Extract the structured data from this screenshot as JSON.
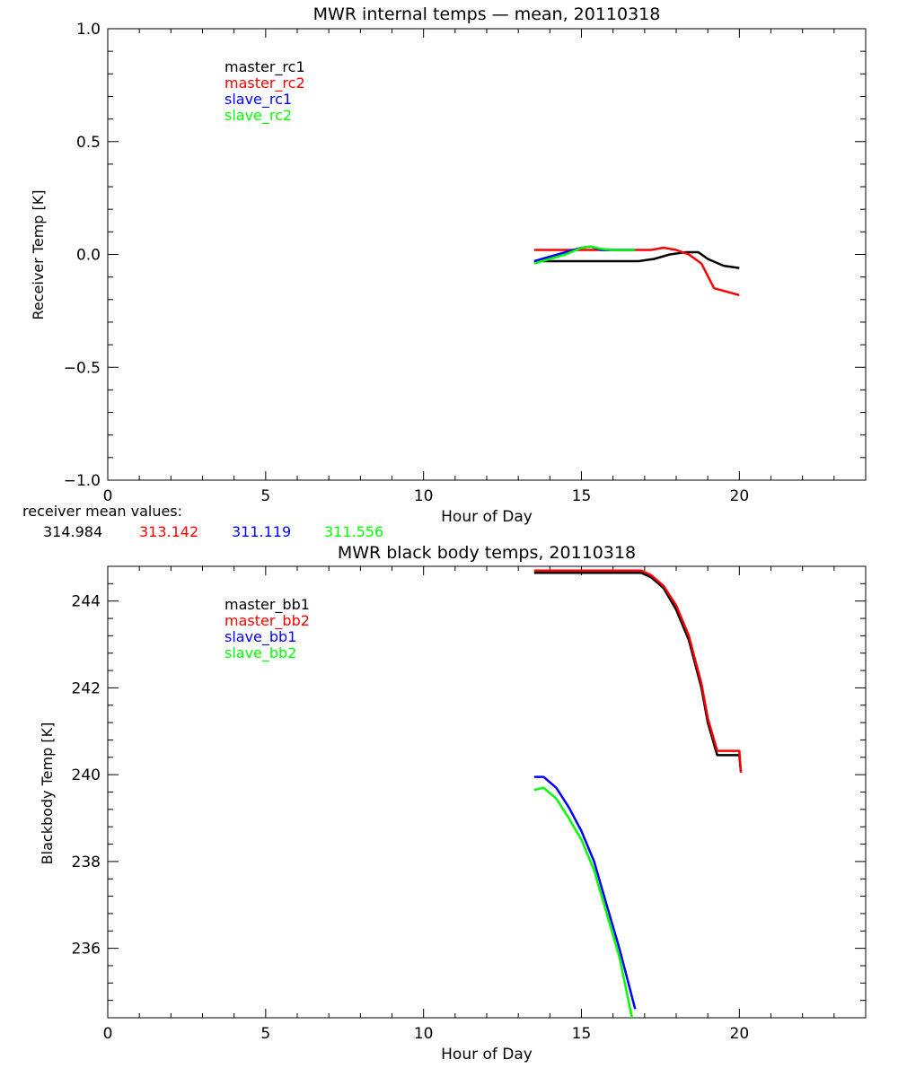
{
  "chart_data": [
    {
      "type": "line",
      "title": "MWR internal temps — mean, 20110318",
      "xlabel": "Hour of Day",
      "ylabel": "Receiver Temp [K]",
      "xlim": [
        0,
        24
      ],
      "ylim": [
        -1.0,
        1.0
      ],
      "x_ticks": [
        0,
        5,
        10,
        15,
        20
      ],
      "x_tick_labels": [
        "0",
        "5",
        "10",
        "15",
        "20"
      ],
      "y_ticks": [
        -1.0,
        -0.5,
        0.0,
        0.5,
        1.0
      ],
      "y_tick_labels": [
        "−1.0",
        "−0.5",
        "0.0",
        "0.5",
        "1.0"
      ],
      "legend_position": "top-left",
      "series": [
        {
          "name": "master_rc1",
          "color": "#000000",
          "x": [
            13.5,
            16.8,
            17.3,
            17.8,
            18.3,
            18.7,
            19.0,
            19.5,
            20.0
          ],
          "y": [
            -0.03,
            -0.03,
            -0.02,
            0.0,
            0.01,
            0.01,
            -0.02,
            -0.05,
            -0.06
          ]
        },
        {
          "name": "master_rc2",
          "color": "#ff0000",
          "x": [
            13.5,
            16.8,
            17.2,
            17.6,
            18.0,
            18.4,
            18.8,
            19.2,
            20.0
          ],
          "y": [
            0.02,
            0.02,
            0.02,
            0.03,
            0.02,
            0.0,
            -0.04,
            -0.15,
            -0.18
          ]
        },
        {
          "name": "slave_rc1",
          "color": "#0000ff",
          "x": [
            13.5,
            14.0,
            14.5,
            15.0,
            15.3,
            15.6,
            16.7
          ],
          "y": [
            -0.03,
            -0.01,
            0.01,
            0.03,
            0.035,
            0.02,
            0.02
          ]
        },
        {
          "name": "slave_rc2",
          "color": "#00ff00",
          "x": [
            13.5,
            14.0,
            14.5,
            15.0,
            15.3,
            15.6,
            16.0,
            16.7
          ],
          "y": [
            -0.04,
            -0.02,
            0.0,
            0.03,
            0.035,
            0.025,
            0.02,
            0.02
          ]
        }
      ],
      "annotation": {
        "label": "receiver mean values:",
        "values": [
          {
            "text": "314.984",
            "color": "#000000"
          },
          {
            "text": "313.142",
            "color": "#ff0000"
          },
          {
            "text": "311.119",
            "color": "#0000ff"
          },
          {
            "text": "311.556",
            "color": "#00ff00"
          }
        ]
      }
    },
    {
      "type": "line",
      "title": "MWR black body temps, 20110318",
      "xlabel": "Hour of Day",
      "ylabel": "Blackbody Temp [K]",
      "xlim": [
        0,
        24
      ],
      "ylim": [
        234.4,
        244.8
      ],
      "x_ticks": [
        0,
        5,
        10,
        15,
        20
      ],
      "x_tick_labels": [
        "0",
        "5",
        "10",
        "15",
        "20"
      ],
      "y_ticks": [
        236,
        238,
        240,
        242,
        244
      ],
      "y_tick_labels": [
        "236",
        "238",
        "240",
        "242",
        "244"
      ],
      "legend_position": "top-left",
      "series": [
        {
          "name": "master_bb1",
          "color": "#000000",
          "x": [
            13.5,
            16.9,
            17.2,
            17.6,
            18.0,
            18.4,
            18.8,
            19.0,
            19.3,
            20.0,
            20.05
          ],
          "y": [
            244.65,
            244.65,
            244.55,
            244.3,
            243.8,
            243.1,
            242.0,
            241.2,
            240.45,
            240.45,
            240.05
          ]
        },
        {
          "name": "master_bb2",
          "color": "#ff0000",
          "x": [
            13.5,
            16.9,
            17.2,
            17.6,
            18.0,
            18.4,
            18.8,
            19.0,
            19.3,
            20.0,
            20.05
          ],
          "y": [
            244.7,
            244.7,
            244.6,
            244.35,
            243.9,
            243.2,
            242.1,
            241.3,
            240.55,
            240.55,
            240.05
          ]
        },
        {
          "name": "slave_bb1",
          "color": "#0000ff",
          "x": [
            13.5,
            13.8,
            14.2,
            14.6,
            15.0,
            15.4,
            15.8,
            16.2,
            16.7
          ],
          "y": [
            239.95,
            239.95,
            239.7,
            239.25,
            238.7,
            238.0,
            237.0,
            236.0,
            234.6
          ]
        },
        {
          "name": "slave_bb2",
          "color": "#00ff00",
          "x": [
            13.5,
            13.8,
            14.2,
            14.6,
            15.0,
            15.4,
            15.8,
            16.2,
            16.6
          ],
          "y": [
            239.65,
            239.7,
            239.45,
            239.0,
            238.5,
            237.8,
            236.8,
            235.8,
            234.4
          ]
        }
      ]
    }
  ]
}
